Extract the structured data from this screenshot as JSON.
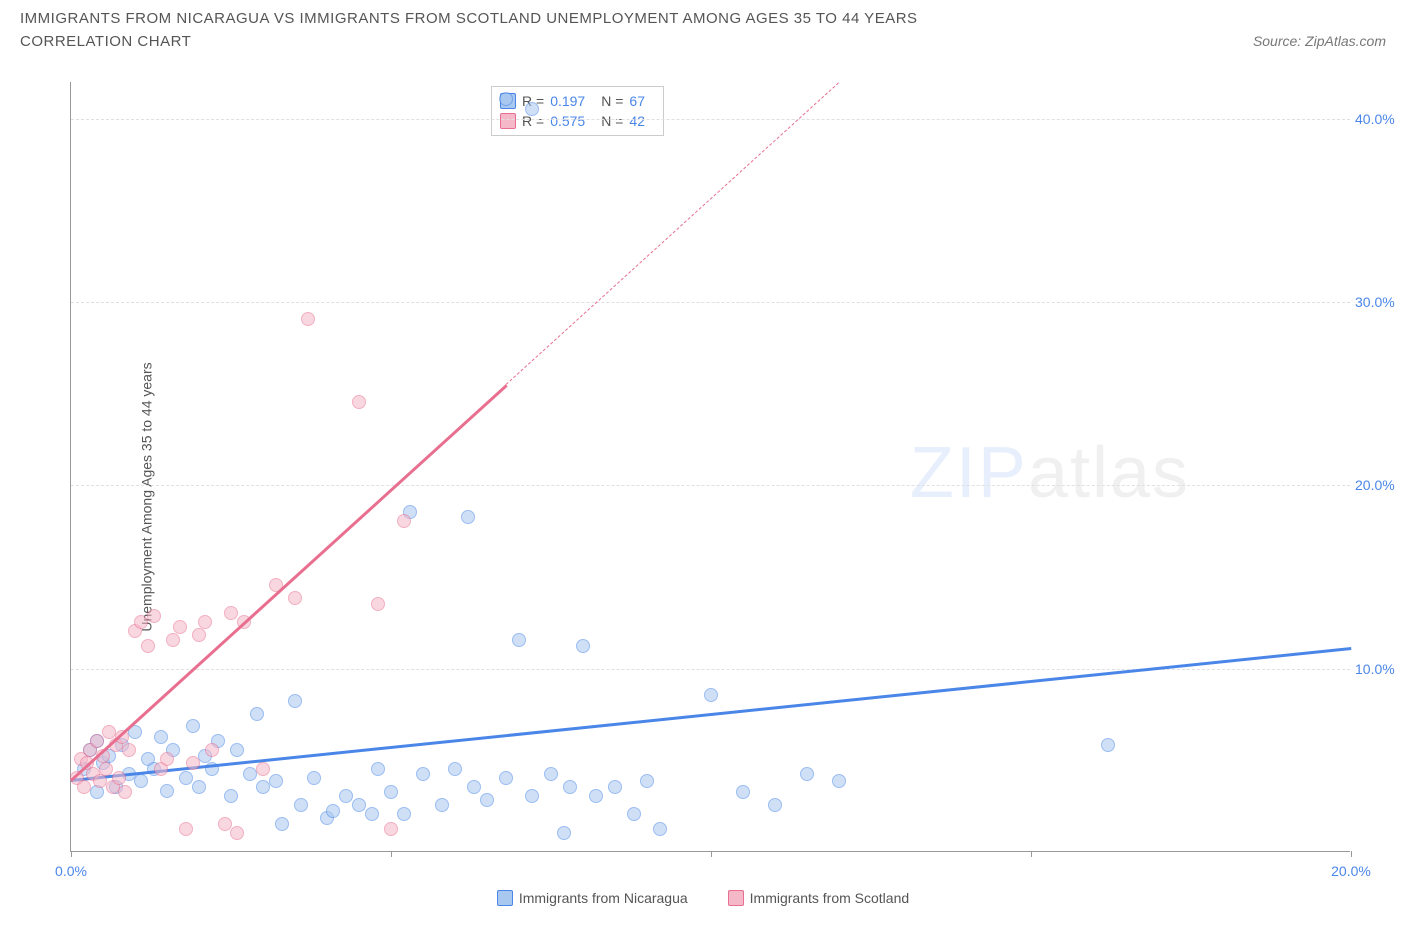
{
  "title": "IMMIGRANTS FROM NICARAGUA VS IMMIGRANTS FROM SCOTLAND UNEMPLOYMENT AMONG AGES 35 TO 44 YEARS",
  "subtitle": "CORRELATION CHART",
  "source": "Source: ZipAtlas.com",
  "watermark_a": "ZIP",
  "watermark_b": "atlas",
  "chart": {
    "type": "scatter",
    "ylabel": "Unemployment Among Ages 35 to 44 years",
    "xlim": [
      0,
      20
    ],
    "ylim": [
      0,
      42
    ],
    "xticks": [
      0,
      5,
      10,
      15,
      20
    ],
    "xtick_labels": [
      "0.0%",
      "",
      "",
      "",
      "20.0%"
    ],
    "yticks": [
      10,
      20,
      30,
      40
    ],
    "ytick_labels": [
      "10.0%",
      "20.0%",
      "30.0%",
      "40.0%"
    ],
    "grid_color": "#e0e0e0",
    "axis_color": "#999999",
    "series": [
      {
        "name": "Immigrants from Nicaragua",
        "color_fill": "#a8c8f0",
        "color_stroke": "#4a86e8",
        "r_value": "0.197",
        "n_value": "67",
        "trend": {
          "x1": 0,
          "y1": 4.0,
          "x2": 20,
          "y2": 11.2,
          "solid_until_x": 20
        },
        "points": [
          [
            0.2,
            4.5
          ],
          [
            0.3,
            5.5
          ],
          [
            0.4,
            3.2
          ],
          [
            0.4,
            6.0
          ],
          [
            0.5,
            4.8
          ],
          [
            0.6,
            5.2
          ],
          [
            0.7,
            3.5
          ],
          [
            0.8,
            5.8
          ],
          [
            0.9,
            4.2
          ],
          [
            1.0,
            6.5
          ],
          [
            1.1,
            3.8
          ],
          [
            1.2,
            5.0
          ],
          [
            1.3,
            4.5
          ],
          [
            1.4,
            6.2
          ],
          [
            1.5,
            3.3
          ],
          [
            1.6,
            5.5
          ],
          [
            1.8,
            4.0
          ],
          [
            1.9,
            6.8
          ],
          [
            2.0,
            3.5
          ],
          [
            2.1,
            5.2
          ],
          [
            2.2,
            4.5
          ],
          [
            2.3,
            6.0
          ],
          [
            2.5,
            3.0
          ],
          [
            2.6,
            5.5
          ],
          [
            2.8,
            4.2
          ],
          [
            2.9,
            7.5
          ],
          [
            3.0,
            3.5
          ],
          [
            3.2,
            3.8
          ],
          [
            3.3,
            1.5
          ],
          [
            3.5,
            8.2
          ],
          [
            3.6,
            2.5
          ],
          [
            3.8,
            4.0
          ],
          [
            4.0,
            1.8
          ],
          [
            4.1,
            2.2
          ],
          [
            4.3,
            3.0
          ],
          [
            4.5,
            2.5
          ],
          [
            4.7,
            2.0
          ],
          [
            4.8,
            4.5
          ],
          [
            5.0,
            3.2
          ],
          [
            5.2,
            2.0
          ],
          [
            5.3,
            18.5
          ],
          [
            5.5,
            4.2
          ],
          [
            5.8,
            2.5
          ],
          [
            6.0,
            4.5
          ],
          [
            6.2,
            18.2
          ],
          [
            6.3,
            3.5
          ],
          [
            6.5,
            2.8
          ],
          [
            6.8,
            4.0
          ],
          [
            7.0,
            11.5
          ],
          [
            7.2,
            3.0
          ],
          [
            7.5,
            4.2
          ],
          [
            7.7,
            1.0
          ],
          [
            7.8,
            3.5
          ],
          [
            8.0,
            11.2
          ],
          [
            8.2,
            3.0
          ],
          [
            8.5,
            3.5
          ],
          [
            8.8,
            2.0
          ],
          [
            9.0,
            3.8
          ],
          [
            9.2,
            1.2
          ],
          [
            10.0,
            8.5
          ],
          [
            10.5,
            3.2
          ],
          [
            11.0,
            2.5
          ],
          [
            11.5,
            4.2
          ],
          [
            12.0,
            3.8
          ],
          [
            16.2,
            5.8
          ],
          [
            6.8,
            41.0
          ],
          [
            7.2,
            40.5
          ]
        ]
      },
      {
        "name": "Immigrants from Scotland",
        "color_fill": "#f5b8c8",
        "color_stroke": "#e86f8f",
        "r_value": "0.575",
        "n_value": "42",
        "trend": {
          "x1": 0,
          "y1": 4.0,
          "x2": 12,
          "y2": 42.0,
          "solid_until_x": 6.8
        },
        "points": [
          [
            0.1,
            4.0
          ],
          [
            0.15,
            5.0
          ],
          [
            0.2,
            3.5
          ],
          [
            0.25,
            4.8
          ],
          [
            0.3,
            5.5
          ],
          [
            0.35,
            4.2
          ],
          [
            0.4,
            6.0
          ],
          [
            0.45,
            3.8
          ],
          [
            0.5,
            5.2
          ],
          [
            0.55,
            4.5
          ],
          [
            0.6,
            6.5
          ],
          [
            0.65,
            3.5
          ],
          [
            0.7,
            5.8
          ],
          [
            0.75,
            4.0
          ],
          [
            0.8,
            6.2
          ],
          [
            0.85,
            3.2
          ],
          [
            0.9,
            5.5
          ],
          [
            1.0,
            12.0
          ],
          [
            1.1,
            12.5
          ],
          [
            1.2,
            11.2
          ],
          [
            1.3,
            12.8
          ],
          [
            1.4,
            4.5
          ],
          [
            1.5,
            5.0
          ],
          [
            1.6,
            11.5
          ],
          [
            1.7,
            12.2
          ],
          [
            1.8,
            1.2
          ],
          [
            1.9,
            4.8
          ],
          [
            2.0,
            11.8
          ],
          [
            2.1,
            12.5
          ],
          [
            2.2,
            5.5
          ],
          [
            2.4,
            1.5
          ],
          [
            2.5,
            13.0
          ],
          [
            2.6,
            1.0
          ],
          [
            2.7,
            12.5
          ],
          [
            3.0,
            4.5
          ],
          [
            3.2,
            14.5
          ],
          [
            3.5,
            13.8
          ],
          [
            3.7,
            29.0
          ],
          [
            4.5,
            24.5
          ],
          [
            4.8,
            13.5
          ],
          [
            5.0,
            1.2
          ],
          [
            5.2,
            18.0
          ]
        ]
      }
    ],
    "legend": [
      {
        "label": "Immigrants from Nicaragua",
        "fill": "#a8c8f0",
        "stroke": "#4a86e8"
      },
      {
        "label": "Immigrants from Scotland",
        "fill": "#f5b8c8",
        "stroke": "#e86f8f"
      }
    ]
  }
}
